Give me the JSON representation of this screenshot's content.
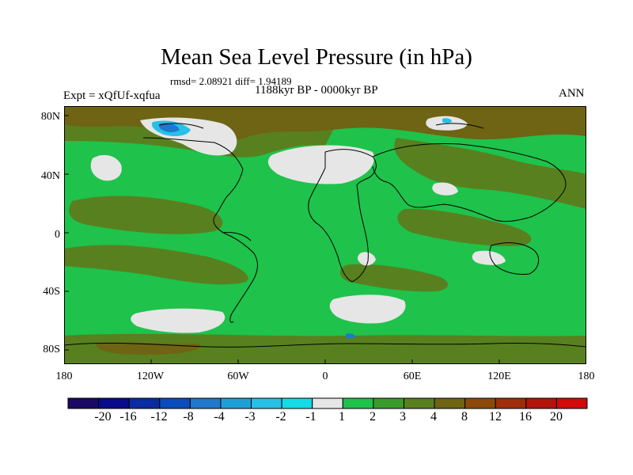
{
  "title": "Mean Sea Level Pressure (in hPa)",
  "stats": "rmsd= 2.08921 diff= 1.94189",
  "period": "1188kyr BP - 0000kyr BP",
  "experiment": "Expt = xQfUf-xqfua",
  "season": "ANN",
  "y_axis_labels": [
    "80N",
    "40N",
    "0",
    "40S",
    "80S"
  ],
  "x_axis_labels": [
    "180",
    "120W",
    "60W",
    "0",
    "60E",
    "120E",
    "180"
  ],
  "colorbar": {
    "labels": [
      "-20",
      "-16",
      "-12",
      "-8",
      "-4",
      "-3",
      "-2",
      "-1",
      "1",
      "2",
      "3",
      "4",
      "8",
      "12",
      "16",
      "20"
    ],
    "colors": [
      "#1a0a63",
      "#0a0a8c",
      "#0a2ca3",
      "#0a4cbd",
      "#1e78cc",
      "#1ea0d6",
      "#28c0e6",
      "#14dce6",
      "#e6e6e6",
      "#1fc24b",
      "#3a9a2a",
      "#58801f",
      "#6e6414",
      "#8c4a0a",
      "#a02d0a",
      "#b4140a",
      "#d20a0a"
    ]
  },
  "map_colors": {
    "green_light": "#1fc24b",
    "green_dark": "#3a9a2a",
    "olive": "#58801f",
    "brown": "#6e6414",
    "white": "#e6e6e6",
    "cyan": "#28c0e6",
    "blue": "#1e78cc"
  }
}
